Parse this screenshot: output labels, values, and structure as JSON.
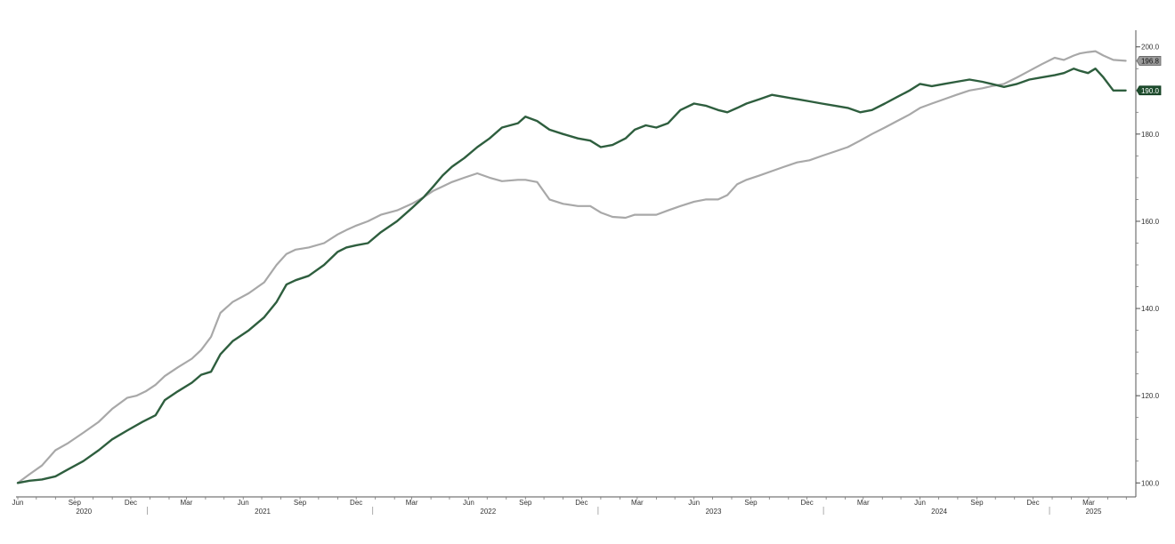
{
  "chart_data": {
    "type": "line",
    "title": "",
    "xlabel": "",
    "ylabel": "",
    "x_range": [
      "2020-06-01",
      "2025-05-15"
    ],
    "ylim": [
      97,
      203
    ],
    "y_ticks": [
      "100.0",
      "120.0",
      "140.0",
      "160.0",
      "180.0",
      "200.0"
    ],
    "x_month_ticks": [
      {
        "date": "2020-06-01",
        "label": "Jun"
      },
      {
        "date": "2020-09-01",
        "label": "Sep"
      },
      {
        "date": "2020-12-01",
        "label": "Dec"
      },
      {
        "date": "2021-03-01",
        "label": "Mar"
      },
      {
        "date": "2021-06-01",
        "label": "Jun"
      },
      {
        "date": "2021-09-01",
        "label": "Sep"
      },
      {
        "date": "2021-12-01",
        "label": "Dec"
      },
      {
        "date": "2022-03-01",
        "label": "Mar"
      },
      {
        "date": "2022-06-01",
        "label": "Jun"
      },
      {
        "date": "2022-09-01",
        "label": "Sep"
      },
      {
        "date": "2022-12-01",
        "label": "Dec"
      },
      {
        "date": "2023-03-01",
        "label": "Mar"
      },
      {
        "date": "2023-06-01",
        "label": "Jun"
      },
      {
        "date": "2023-09-01",
        "label": "Sep"
      },
      {
        "date": "2023-12-01",
        "label": "Dec"
      },
      {
        "date": "2024-03-01",
        "label": "Mar"
      },
      {
        "date": "2024-06-01",
        "label": "Jun"
      },
      {
        "date": "2024-09-01",
        "label": "Sep"
      },
      {
        "date": "2024-12-01",
        "label": "Dec"
      },
      {
        "date": "2025-03-01",
        "label": "Mar"
      }
    ],
    "x_year_labels": [
      {
        "year": "2020",
        "start": "2020-06-01",
        "end": "2021-01-01"
      },
      {
        "year": "2021",
        "start": "2021-01-01",
        "end": "2022-01-01"
      },
      {
        "year": "2022",
        "start": "2022-01-01",
        "end": "2023-01-01"
      },
      {
        "year": "2023",
        "start": "2023-01-01",
        "end": "2024-01-01"
      },
      {
        "year": "2024",
        "start": "2024-01-01",
        "end": "2025-01-01"
      },
      {
        "year": "2025",
        "start": "2025-01-01",
        "end": "2025-05-15"
      }
    ],
    "year_dividers": [
      "2021-01-01",
      "2022-01-01",
      "2023-01-01",
      "2024-01-01",
      "2025-01-01"
    ],
    "grid": false,
    "series": [
      {
        "color": "#2e5e3e",
        "last_value_label": "190.0",
        "points": [
          [
            "2020-06-01",
            100.0
          ],
          [
            "2020-06-20",
            100.5
          ],
          [
            "2020-07-10",
            100.8
          ],
          [
            "2020-08-01",
            101.5
          ],
          [
            "2020-08-20",
            103.0
          ],
          [
            "2020-09-15",
            105.0
          ],
          [
            "2020-10-10",
            107.5
          ],
          [
            "2020-11-01",
            110.0
          ],
          [
            "2020-11-25",
            112.0
          ],
          [
            "2020-12-20",
            114.0
          ],
          [
            "2021-01-10",
            115.5
          ],
          [
            "2021-01-25",
            119.0
          ],
          [
            "2021-02-15",
            121.0
          ],
          [
            "2021-03-10",
            123.0
          ],
          [
            "2021-03-25",
            124.8
          ],
          [
            "2021-04-10",
            125.5
          ],
          [
            "2021-04-25",
            129.5
          ],
          [
            "2021-05-15",
            132.5
          ],
          [
            "2021-06-10",
            135.0
          ],
          [
            "2021-07-05",
            138.0
          ],
          [
            "2021-07-25",
            141.5
          ],
          [
            "2021-08-10",
            145.5
          ],
          [
            "2021-08-25",
            146.5
          ],
          [
            "2021-09-15",
            147.5
          ],
          [
            "2021-10-10",
            150.0
          ],
          [
            "2021-11-01",
            153.0
          ],
          [
            "2021-11-15",
            154.0
          ],
          [
            "2021-12-01",
            154.5
          ],
          [
            "2021-12-20",
            155.0
          ],
          [
            "2022-01-10",
            157.5
          ],
          [
            "2022-02-05",
            160.0
          ],
          [
            "2022-03-01",
            163.0
          ],
          [
            "2022-03-20",
            165.5
          ],
          [
            "2022-04-05",
            168.0
          ],
          [
            "2022-04-20",
            170.5
          ],
          [
            "2022-05-05",
            172.5
          ],
          [
            "2022-05-25",
            174.5
          ],
          [
            "2022-06-15",
            177.0
          ],
          [
            "2022-07-05",
            179.0
          ],
          [
            "2022-07-25",
            181.5
          ],
          [
            "2022-08-20",
            182.5
          ],
          [
            "2022-09-01",
            184.0
          ],
          [
            "2022-09-20",
            183.0
          ],
          [
            "2022-10-10",
            181.0
          ],
          [
            "2022-11-01",
            180.0
          ],
          [
            "2022-11-25",
            179.0
          ],
          [
            "2022-12-15",
            178.5
          ],
          [
            "2023-01-01",
            177.0
          ],
          [
            "2023-01-20",
            177.5
          ],
          [
            "2023-02-10",
            179.0
          ],
          [
            "2023-02-25",
            181.0
          ],
          [
            "2023-03-15",
            182.0
          ],
          [
            "2023-04-01",
            181.5
          ],
          [
            "2023-04-20",
            182.5
          ],
          [
            "2023-05-10",
            185.5
          ],
          [
            "2023-06-01",
            187.0
          ],
          [
            "2023-06-20",
            186.5
          ],
          [
            "2023-07-10",
            185.5
          ],
          [
            "2023-07-25",
            185.0
          ],
          [
            "2023-08-10",
            186.0
          ],
          [
            "2023-08-25",
            187.0
          ],
          [
            "2023-09-15",
            188.0
          ],
          [
            "2023-10-05",
            189.0
          ],
          [
            "2023-10-25",
            188.5
          ],
          [
            "2023-11-15",
            188.0
          ],
          [
            "2023-12-05",
            187.5
          ],
          [
            "2023-12-25",
            187.0
          ],
          [
            "2024-01-15",
            186.5
          ],
          [
            "2024-02-05",
            186.0
          ],
          [
            "2024-02-25",
            185.0
          ],
          [
            "2024-03-15",
            185.5
          ],
          [
            "2024-04-05",
            187.0
          ],
          [
            "2024-04-25",
            188.5
          ],
          [
            "2024-05-15",
            190.0
          ],
          [
            "2024-06-01",
            191.5
          ],
          [
            "2024-06-20",
            191.0
          ],
          [
            "2024-07-10",
            191.5
          ],
          [
            "2024-07-30",
            192.0
          ],
          [
            "2024-08-20",
            192.5
          ],
          [
            "2024-09-10",
            192.0
          ],
          [
            "2024-09-25",
            191.5
          ],
          [
            "2024-10-15",
            190.8
          ],
          [
            "2024-11-05",
            191.5
          ],
          [
            "2024-11-25",
            192.5
          ],
          [
            "2024-12-15",
            193.0
          ],
          [
            "2025-01-05",
            193.5
          ],
          [
            "2025-01-20",
            194.0
          ],
          [
            "2025-02-05",
            195.0
          ],
          [
            "2025-02-15",
            194.5
          ],
          [
            "2025-02-28",
            194.0
          ],
          [
            "2025-03-12",
            195.0
          ],
          [
            "2025-03-25",
            193.0
          ],
          [
            "2025-04-10",
            190.0
          ],
          [
            "2025-04-30",
            190.0
          ]
        ]
      },
      {
        "color": "#a8a8a8",
        "last_value_label": "196.8",
        "points": [
          [
            "2020-06-01",
            100.0
          ],
          [
            "2020-06-20",
            102.0
          ],
          [
            "2020-07-10",
            104.0
          ],
          [
            "2020-08-01",
            107.5
          ],
          [
            "2020-08-20",
            109.0
          ],
          [
            "2020-09-15",
            111.5
          ],
          [
            "2020-10-10",
            114.0
          ],
          [
            "2020-11-01",
            117.0
          ],
          [
            "2020-11-25",
            119.5
          ],
          [
            "2020-12-10",
            120.0
          ],
          [
            "2020-12-25",
            121.0
          ],
          [
            "2021-01-10",
            122.5
          ],
          [
            "2021-01-25",
            124.5
          ],
          [
            "2021-02-15",
            126.5
          ],
          [
            "2021-03-10",
            128.5
          ],
          [
            "2021-03-25",
            130.5
          ],
          [
            "2021-04-10",
            133.5
          ],
          [
            "2021-04-25",
            139.0
          ],
          [
            "2021-05-15",
            141.5
          ],
          [
            "2021-06-10",
            143.5
          ],
          [
            "2021-07-05",
            146.0
          ],
          [
            "2021-07-25",
            150.0
          ],
          [
            "2021-08-10",
            152.5
          ],
          [
            "2021-08-25",
            153.5
          ],
          [
            "2021-09-15",
            154.0
          ],
          [
            "2021-10-10",
            155.0
          ],
          [
            "2021-11-01",
            157.0
          ],
          [
            "2021-11-15",
            158.0
          ],
          [
            "2021-12-01",
            159.0
          ],
          [
            "2021-12-20",
            160.0
          ],
          [
            "2022-01-10",
            161.5
          ],
          [
            "2022-02-05",
            162.5
          ],
          [
            "2022-03-01",
            164.0
          ],
          [
            "2022-03-20",
            165.5
          ],
          [
            "2022-04-05",
            167.0
          ],
          [
            "2022-04-20",
            168.0
          ],
          [
            "2022-05-05",
            169.0
          ],
          [
            "2022-05-25",
            170.0
          ],
          [
            "2022-06-15",
            171.0
          ],
          [
            "2022-07-05",
            170.0
          ],
          [
            "2022-07-25",
            169.2
          ],
          [
            "2022-08-20",
            169.5
          ],
          [
            "2022-09-01",
            169.5
          ],
          [
            "2022-09-20",
            169.0
          ],
          [
            "2022-10-10",
            165.0
          ],
          [
            "2022-11-01",
            164.0
          ],
          [
            "2022-11-25",
            163.5
          ],
          [
            "2022-12-15",
            163.5
          ],
          [
            "2023-01-01",
            162.0
          ],
          [
            "2023-01-20",
            161.0
          ],
          [
            "2023-02-10",
            160.8
          ],
          [
            "2023-02-25",
            161.5
          ],
          [
            "2023-03-15",
            161.5
          ],
          [
            "2023-04-01",
            161.5
          ],
          [
            "2023-04-20",
            162.5
          ],
          [
            "2023-05-10",
            163.5
          ],
          [
            "2023-06-01",
            164.5
          ],
          [
            "2023-06-20",
            165.0
          ],
          [
            "2023-07-10",
            165.0
          ],
          [
            "2023-07-25",
            166.0
          ],
          [
            "2023-08-10",
            168.5
          ],
          [
            "2023-08-25",
            169.5
          ],
          [
            "2023-09-15",
            170.5
          ],
          [
            "2023-10-05",
            171.5
          ],
          [
            "2023-10-25",
            172.5
          ],
          [
            "2023-11-15",
            173.5
          ],
          [
            "2023-12-05",
            174.0
          ],
          [
            "2023-12-25",
            175.0
          ],
          [
            "2024-01-15",
            176.0
          ],
          [
            "2024-02-05",
            177.0
          ],
          [
            "2024-02-25",
            178.5
          ],
          [
            "2024-03-15",
            180.0
          ],
          [
            "2024-04-05",
            181.5
          ],
          [
            "2024-04-25",
            183.0
          ],
          [
            "2024-05-15",
            184.5
          ],
          [
            "2024-06-01",
            186.0
          ],
          [
            "2024-06-20",
            187.0
          ],
          [
            "2024-07-10",
            188.0
          ],
          [
            "2024-07-30",
            189.0
          ],
          [
            "2024-08-20",
            190.0
          ],
          [
            "2024-09-10",
            190.5
          ],
          [
            "2024-09-25",
            191.0
          ],
          [
            "2024-10-15",
            191.5
          ],
          [
            "2024-11-05",
            193.0
          ],
          [
            "2024-11-25",
            194.5
          ],
          [
            "2024-12-15",
            196.0
          ],
          [
            "2025-01-05",
            197.5
          ],
          [
            "2025-01-20",
            197.0
          ],
          [
            "2025-02-05",
            198.0
          ],
          [
            "2025-02-15",
            198.5
          ],
          [
            "2025-02-28",
            198.8
          ],
          [
            "2025-03-12",
            199.0
          ],
          [
            "2025-03-25",
            198.0
          ],
          [
            "2025-04-10",
            197.0
          ],
          [
            "2025-04-30",
            196.8
          ]
        ]
      }
    ]
  }
}
